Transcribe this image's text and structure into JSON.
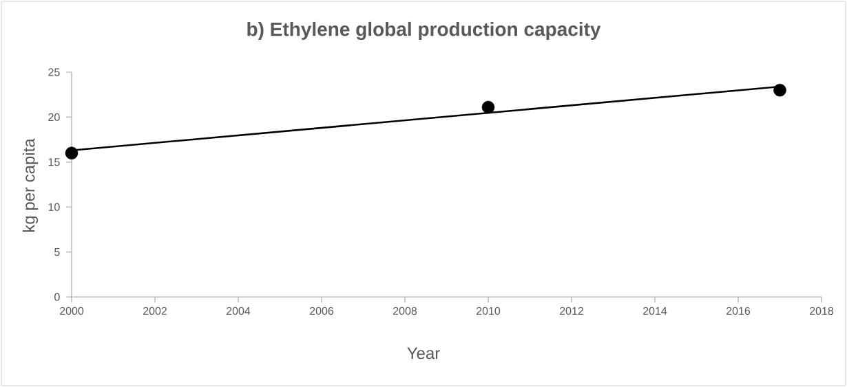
{
  "chart_data": {
    "type": "scatter",
    "title": "b) Ethylene global production capacity",
    "xlabel": "Year",
    "ylabel": "kg per capita",
    "xlim": [
      2000,
      2018
    ],
    "xticks": [
      2000,
      2002,
      2004,
      2006,
      2008,
      2010,
      2012,
      2014,
      2016,
      2018
    ],
    "ylim": [
      0,
      25
    ],
    "yticks": [
      0,
      5,
      10,
      15,
      20,
      25
    ],
    "series": [
      {
        "color": "#000000",
        "marker": "circle",
        "x": [
          2000,
          2010,
          2017
        ],
        "values": [
          16,
          21.1,
          23
        ]
      },
      {
        "type": "line",
        "color": "#000000",
        "marker": "none",
        "line_style": "solid",
        "x": [
          2000,
          2017
        ],
        "values": [
          16.3,
          23.4
        ]
      }
    ]
  }
}
